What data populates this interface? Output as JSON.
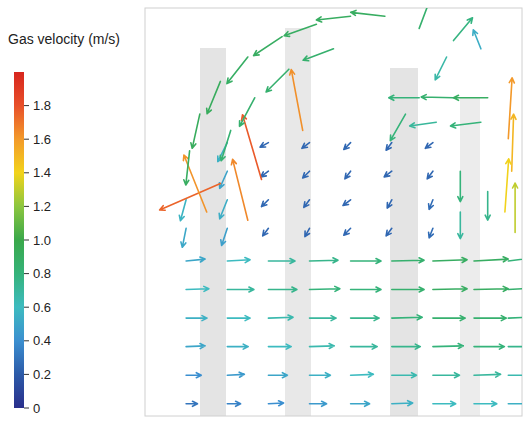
{
  "chart_data": {
    "type": "quiver",
    "xlim": [
      -10,
      100
    ],
    "ylim": [
      0,
      100
    ],
    "tick_labels": false,
    "colorbar": {
      "title": "Gas velocity (m/s)",
      "range": [
        0,
        2
      ],
      "ticks": [
        0,
        0.2,
        0.4,
        0.6,
        0.8,
        {
          "value": 1,
          "label": "1.0"
        },
        1.2,
        1.4,
        1.6,
        1.8
      ]
    },
    "vectors": {
      "x": [
        2,
        14,
        26,
        38,
        50,
        62,
        74,
        86,
        96,
        2,
        14,
        26,
        38,
        50,
        62,
        74,
        86,
        96,
        2,
        14,
        26,
        38,
        50,
        62,
        74,
        86,
        96,
        2,
        14,
        26,
        38,
        50,
        62,
        74,
        86,
        96,
        2,
        14,
        26,
        38,
        50,
        62,
        74,
        86,
        96,
        2,
        14,
        26,
        38,
        50,
        62,
        74,
        86,
        96,
        26,
        38,
        50,
        62,
        74,
        26,
        38,
        50,
        62,
        74,
        26,
        38,
        50,
        62,
        74,
        26,
        38,
        50,
        62,
        74,
        2,
        14,
        2,
        14,
        14,
        14,
        12,
        20,
        24,
        36,
        8,
        60,
        50,
        40,
        30,
        20,
        12,
        6,
        3,
        45,
        32,
        22,
        15,
        70,
        80,
        70,
        80,
        90,
        75,
        88,
        66,
        97,
        95,
        98,
        96,
        82,
        82,
        90,
        78,
        88
      ],
      "y": [
        3,
        3,
        3,
        3,
        3,
        3,
        3,
        3,
        3,
        10,
        10,
        10,
        10,
        10,
        10,
        10,
        10,
        10,
        17,
        17,
        17,
        17,
        17,
        17,
        17,
        17,
        17,
        24,
        24,
        24,
        24,
        24,
        24,
        24,
        24,
        24,
        31,
        31,
        31,
        31,
        31,
        31,
        31,
        31,
        31,
        38,
        38,
        38,
        38,
        38,
        38,
        38,
        38,
        38,
        46,
        46,
        46,
        46,
        46,
        53,
        53,
        53,
        53,
        53,
        60,
        60,
        60,
        60,
        60,
        67,
        67,
        67,
        67,
        67,
        46,
        46,
        53,
        53,
        60,
        67,
        57,
        48,
        58,
        70,
        50,
        98,
        98,
        96,
        93,
        88,
        82,
        74,
        65,
        90,
        85,
        78,
        70,
        95,
        92,
        78,
        78,
        78,
        72,
        72,
        74,
        60,
        50,
        45,
        68,
        60,
        50,
        55,
        88,
        90
      ],
      "u": [
        0.3,
        0.35,
        0.4,
        0.45,
        0.5,
        0.55,
        0.6,
        0.6,
        0.55,
        0.4,
        0.45,
        0.5,
        0.55,
        0.6,
        0.65,
        0.7,
        0.7,
        0.65,
        0.5,
        0.55,
        0.6,
        0.65,
        0.7,
        0.75,
        0.8,
        0.8,
        0.75,
        0.55,
        0.6,
        0.65,
        0.7,
        0.75,
        0.8,
        0.85,
        0.85,
        0.8,
        0.6,
        0.7,
        0.75,
        0.8,
        0.8,
        0.85,
        0.9,
        0.9,
        0.85,
        0.5,
        0.6,
        0.7,
        0.75,
        0.8,
        0.85,
        0.9,
        0.9,
        0.8,
        -0.15,
        -0.12,
        -0.18,
        -0.15,
        -0.1,
        -0.18,
        -0.15,
        -0.2,
        -0.12,
        -0.1,
        -0.2,
        -0.18,
        -0.15,
        -0.2,
        -0.15,
        -0.22,
        -0.2,
        -0.18,
        -0.15,
        -0.2,
        -0.1,
        -0.15,
        -0.15,
        -0.2,
        -0.2,
        -0.25,
        -1.6,
        -0.4,
        -0.5,
        -0.3,
        -0.6,
        -0.9,
        -0.9,
        -0.85,
        -0.75,
        -0.55,
        -0.35,
        -0.2,
        -0.1,
        -0.8,
        -0.6,
        -0.4,
        -0.25,
        0.3,
        0.5,
        -0.8,
        -0.85,
        -0.9,
        -0.7,
        -0.8,
        -0.4,
        0.05,
        0.1,
        0,
        0.1,
        0,
        0,
        0,
        -0.3,
        -0.2
      ],
      "v": [
        0,
        0,
        0.02,
        0,
        0,
        0.02,
        0,
        0,
        0,
        0,
        0.02,
        0,
        0,
        0.02,
        0,
        0,
        0.02,
        0,
        0.02,
        0,
        0,
        0.02,
        0,
        0,
        0.02,
        0,
        0,
        0,
        0,
        0.02,
        0,
        0,
        0.02,
        0,
        0,
        0.03,
        0.02,
        0,
        0,
        0.02,
        0,
        0,
        0.02,
        0.02,
        0.05,
        0.05,
        0.03,
        0,
        0.02,
        0,
        0.02,
        0.03,
        0.05,
        0.1,
        -0.2,
        -0.22,
        -0.18,
        -0.2,
        -0.25,
        -0.18,
        -0.2,
        -0.15,
        -0.22,
        -0.25,
        -0.15,
        -0.18,
        -0.2,
        -0.15,
        -0.2,
        -0.12,
        -0.15,
        -0.18,
        -0.2,
        -0.15,
        -0.5,
        -0.45,
        -0.55,
        -0.5,
        -0.45,
        -0.5,
        -0.7,
        1.6,
        1.7,
        1.6,
        1.5,
        0.1,
        -0.1,
        -0.3,
        -0.5,
        -0.7,
        -0.85,
        -0.9,
        -0.9,
        -0.3,
        -0.6,
        -0.75,
        -0.8,
        0.8,
        0.6,
        0,
        0.02,
        0,
        -0.1,
        -0.1,
        -0.7,
        1.5,
        1.4,
        1.3,
        1.6,
        -0.8,
        -0.7,
        -0.75,
        -0.6,
        0.5
      ]
    }
  }
}
